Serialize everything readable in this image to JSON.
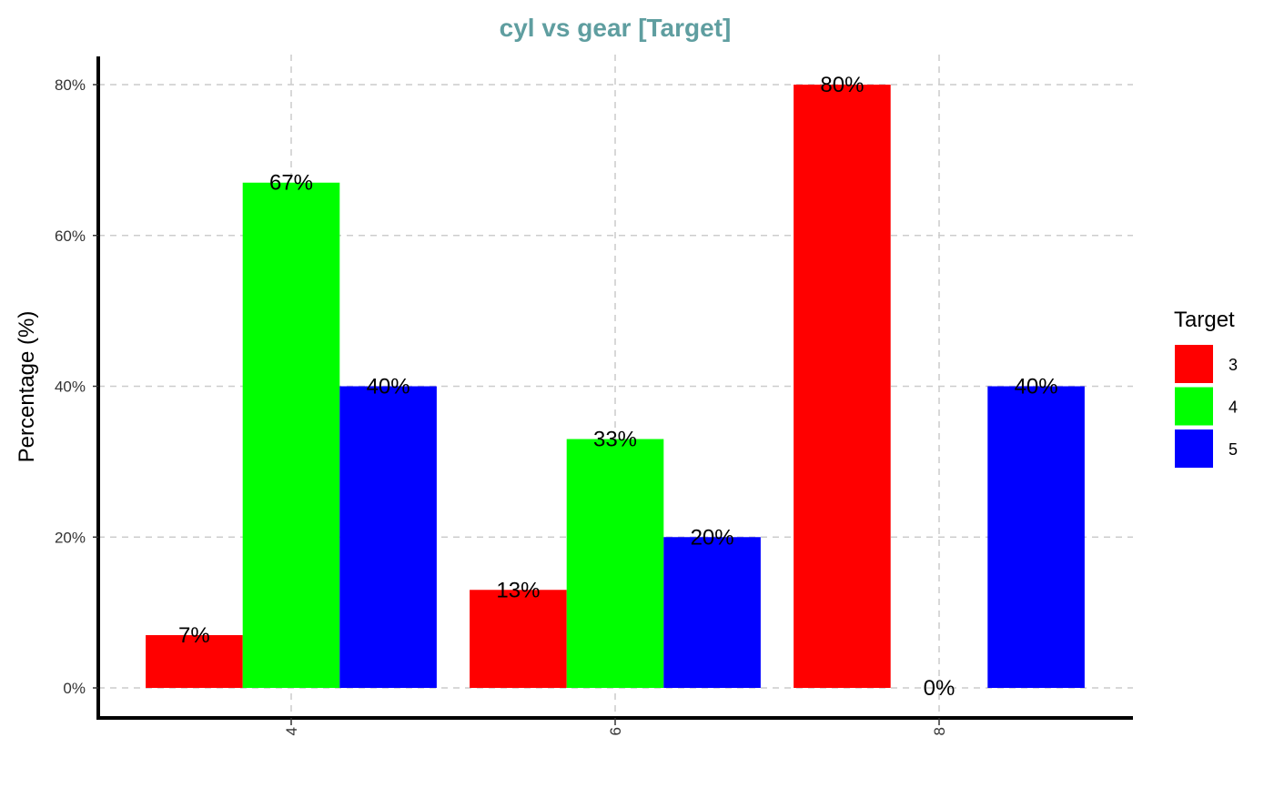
{
  "chart_data": {
    "type": "bar",
    "title": "cyl vs gear [Target]",
    "xlabel": "",
    "ylabel": "Percentage (%)",
    "categories": [
      "4",
      "6",
      "8"
    ],
    "series": [
      {
        "name": "3",
        "values": [
          7,
          13,
          80
        ],
        "labels": [
          "7%",
          "13%",
          "80%"
        ],
        "color": "#FF0000"
      },
      {
        "name": "4",
        "values": [
          67,
          33,
          0
        ],
        "labels": [
          "67%",
          "33%",
          "0%"
        ],
        "color": "#00FF00"
      },
      {
        "name": "5",
        "values": [
          40,
          20,
          40
        ],
        "labels": [
          "40%",
          "20%",
          "40%"
        ],
        "color": "#0000FF"
      }
    ],
    "ylim": [
      0,
      80
    ],
    "yticks": [
      0,
      20,
      40,
      60,
      80
    ],
    "ytick_labels": [
      "0%",
      "20%",
      "40%",
      "60%",
      "80%"
    ],
    "grid": true,
    "legend": {
      "title": "Target",
      "placement": "right"
    }
  },
  "colors": {
    "title": "#5F9EA0",
    "grid": "#CCCCCC",
    "axis_line": "#000000"
  }
}
